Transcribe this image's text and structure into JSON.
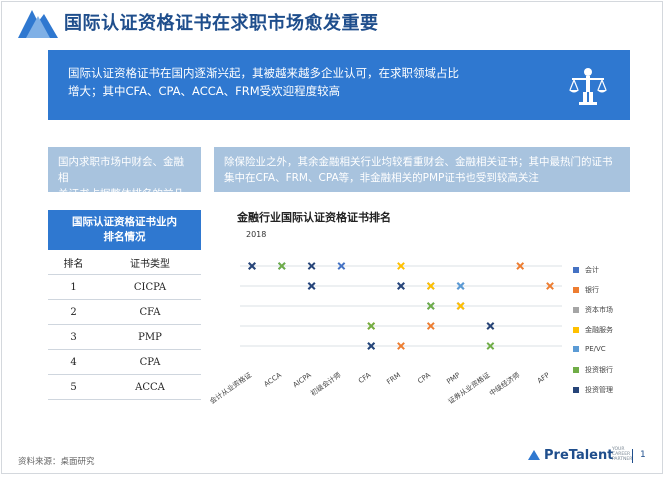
{
  "title": "国际认证资格证书在求职市场愈发重要",
  "hero": {
    "line1": "国际认证资格证书在国内逐渐兴起，其被越来越多企业认可，在求职领域占比",
    "line2": "增大；其中CFA、CPA、ACCA、FRM受欢迎程度较高",
    "icon": "justice-scale-figure-icon"
  },
  "box_left": {
    "line1": "国内求职市场中财会、金融相",
    "line2": "关证书占据整体排名的前几位"
  },
  "box_right": {
    "line1": "除保险业之外，其余金融相关行业均较看重财会、金融相关证书；其中最热门的证书",
    "line2": "集中在CFA、FRM、CPA等，非金融相关的PMP证书也受到较高关注"
  },
  "rank_table": {
    "title_line1": "国际认证资格证书业内",
    "title_line2": "排名情况",
    "headers": [
      "排名",
      "证书类型"
    ],
    "rows": [
      [
        "1",
        "CICPA"
      ],
      [
        "2",
        "CFA"
      ],
      [
        "3",
        "PMP"
      ],
      [
        "4",
        "CPA"
      ],
      [
        "5",
        "ACCA"
      ]
    ]
  },
  "chart_data": {
    "type": "scatter",
    "title": "金融行业国际认证资格证书排名",
    "year_label": "2018",
    "x_categories": [
      "会计从业资格证",
      "ACCA",
      "AICPA",
      "初级会计师",
      "CFA",
      "FRM",
      "CPA",
      "PMP",
      "证券从业资格证",
      "中级经济师",
      "AFP"
    ],
    "marker": "x",
    "series": [
      {
        "name": "会计",
        "color": "#4472c4",
        "x": [
          "会计从业资格证",
          "初级会计师",
          "AICPA",
          "PMP",
          "FRM"
        ],
        "rank": [
          1,
          1,
          2,
          2,
          2
        ]
      },
      {
        "name": "银行",
        "color": "#ed7d31",
        "x": [
          "中级经济师",
          "AFP",
          "PMP",
          "FRM",
          "CPA"
        ],
        "rank": [
          1,
          2,
          3,
          5,
          4
        ]
      },
      {
        "name": "资本市场",
        "color": "#a5a5a5",
        "x": [
          "会计从业资格证",
          "CPA",
          "PMP",
          "证券从业资格证",
          "CFA"
        ],
        "rank": [
          1,
          2,
          3,
          4,
          5
        ]
      },
      {
        "name": "金融服务",
        "color": "#ffc000",
        "x": [
          "FRM",
          "CPA",
          "PMP",
          "CFA"
        ],
        "rank": [
          1,
          2,
          3,
          4
        ]
      },
      {
        "name": "PE/VC",
        "color": "#5b9bd5",
        "x": [
          "ACCA",
          "PMP",
          "CPA",
          "CFA"
        ],
        "rank": [
          1,
          2,
          3,
          5
        ]
      },
      {
        "name": "投资银行",
        "color": "#70ad47",
        "x": [
          "ACCA",
          "CPA",
          "CFA",
          "证券从业资格证"
        ],
        "rank": [
          1,
          3,
          4,
          5
        ]
      },
      {
        "name": "投资管理",
        "color": "#264478",
        "x": [
          "会计从业资格证",
          "AICPA",
          "证券从业资格证",
          "FRM",
          "CFA",
          "AICPA"
        ],
        "rank": [
          1,
          1,
          4,
          2,
          5,
          2
        ]
      }
    ]
  },
  "footer": {
    "source": "资料来源：桌面研究",
    "brand": "PreTalent",
    "brand_sub": "YOUR CAREER PARTNER",
    "page": "1"
  }
}
